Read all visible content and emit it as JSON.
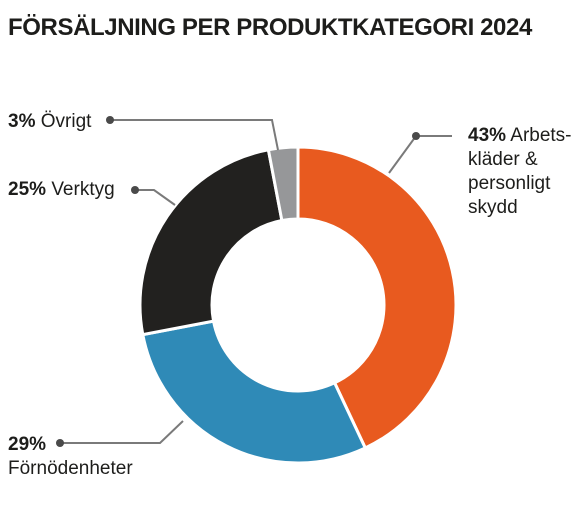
{
  "chart_data": {
    "type": "pie",
    "title": "FÖRSÄLJNING PER PRODUKTKATEGORI 2024",
    "slices": [
      {
        "pct_label": "43%",
        "value": 43,
        "name_lines": [
          "Arbets-",
          "kläder &",
          "personligt",
          "skydd"
        ],
        "color": "#e85a1f"
      },
      {
        "pct_label": "29%",
        "value": 29,
        "name_lines": [
          "Förnödenheter"
        ],
        "color": "#2f8ab7"
      },
      {
        "pct_label": "25%",
        "value": 25,
        "name_lines": [
          "Verktyg"
        ],
        "color": "#22211f"
      },
      {
        "pct_label": "3%",
        "value": 3,
        "name_lines": [
          "Övrigt"
        ],
        "color": "#969799"
      }
    ],
    "leader_color": "#7a7a7a"
  }
}
